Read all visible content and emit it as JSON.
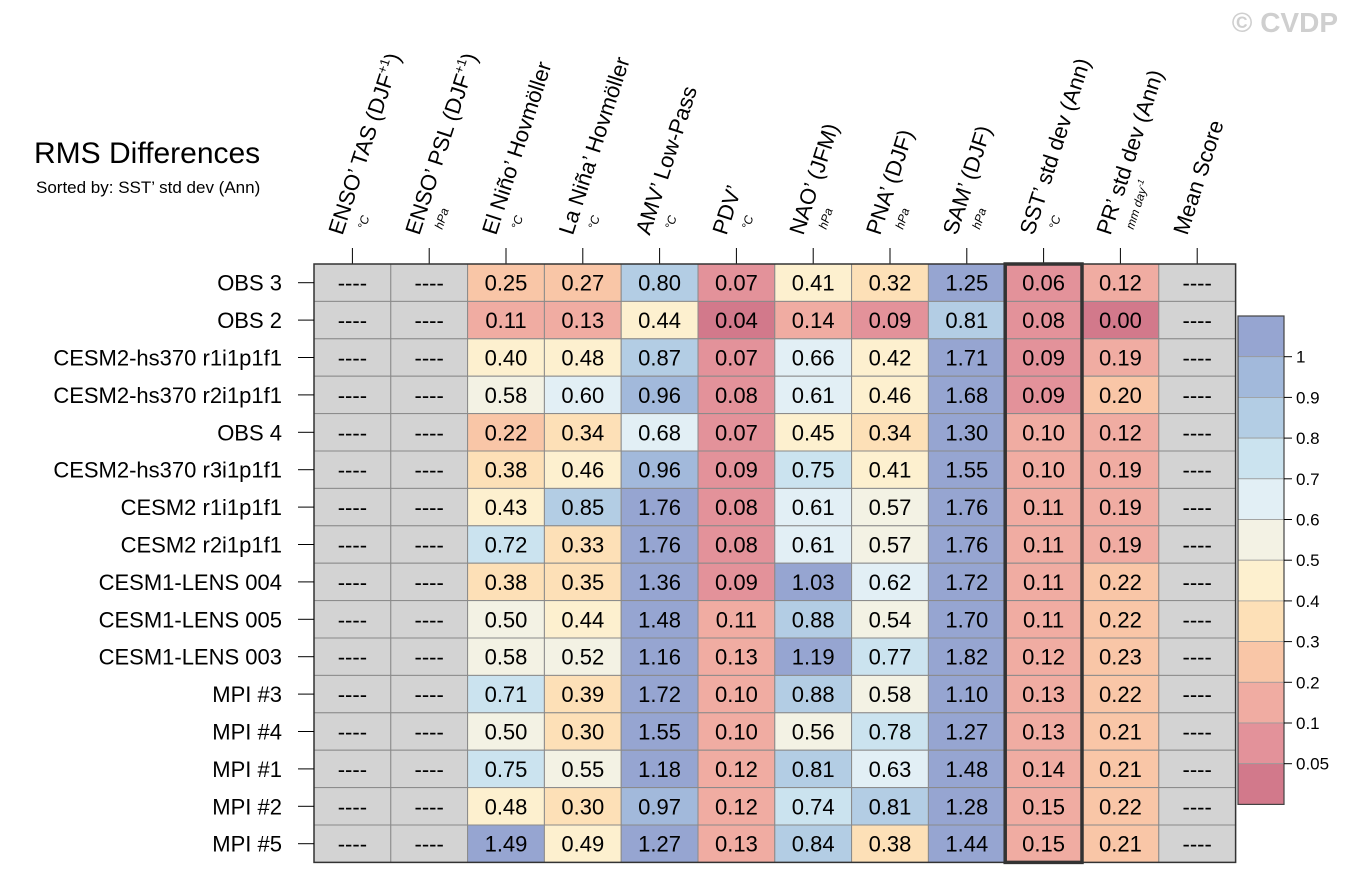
{
  "chart_data": {
    "type": "heatmap",
    "title": "RMS Differences",
    "subtitle": "Sorted by: SST’ std dev (Ann)",
    "watermark": "© CVDP",
    "missing_text": "----",
    "columns": [
      {
        "label": "ENSO’ TAS (DJF",
        "sup": "+1",
        "close": ")",
        "unit": "°C"
      },
      {
        "label": "ENSO’ PSL (DJF",
        "sup": "+1",
        "close": ")",
        "unit": "hPa"
      },
      {
        "label": "El Niño’ Hovmöller",
        "unit": "°C"
      },
      {
        "label": "La Niña’ Hovmöller",
        "unit": "°C"
      },
      {
        "label": "AMV’ Low-Pass",
        "unit": "°C"
      },
      {
        "label": "PDV’",
        "unit": "°C"
      },
      {
        "label": "NAO’ (JFM)",
        "unit": "hPa"
      },
      {
        "label": "PNA’ (DJF)",
        "unit": "hPa"
      },
      {
        "label": "SAM’ (DJF)",
        "unit": "hPa"
      },
      {
        "label": "SST’ std dev (Ann)",
        "unit": "°C"
      },
      {
        "label": "PR’ std dev (Ann)",
        "unit": "mm day",
        "unit_sup": "-1"
      },
      {
        "label": "Mean Score",
        "unit": ""
      }
    ],
    "highlight_column": 9,
    "rows": [
      {
        "name": "OBS 3",
        "values": [
          null,
          null,
          0.25,
          0.27,
          0.8,
          0.07,
          0.41,
          0.32,
          1.25,
          0.06,
          0.12,
          null
        ]
      },
      {
        "name": "OBS 2",
        "values": [
          null,
          null,
          0.11,
          0.13,
          0.44,
          0.04,
          0.14,
          0.09,
          0.81,
          0.08,
          0.0,
          null
        ]
      },
      {
        "name": "CESM2-hs370 r1i1p1f1",
        "values": [
          null,
          null,
          0.4,
          0.48,
          0.87,
          0.07,
          0.66,
          0.42,
          1.71,
          0.09,
          0.19,
          null
        ]
      },
      {
        "name": "CESM2-hs370 r2i1p1f1",
        "values": [
          null,
          null,
          0.58,
          0.6,
          0.96,
          0.08,
          0.61,
          0.46,
          1.68,
          0.09,
          0.2,
          null
        ]
      },
      {
        "name": "OBS 4",
        "values": [
          null,
          null,
          0.22,
          0.34,
          0.68,
          0.07,
          0.45,
          0.34,
          1.3,
          0.1,
          0.12,
          null
        ]
      },
      {
        "name": "CESM2-hs370 r3i1p1f1",
        "values": [
          null,
          null,
          0.38,
          0.46,
          0.96,
          0.09,
          0.75,
          0.41,
          1.55,
          0.1,
          0.19,
          null
        ]
      },
      {
        "name": "CESM2 r1i1p1f1",
        "values": [
          null,
          null,
          0.43,
          0.85,
          1.76,
          0.08,
          0.61,
          0.57,
          1.76,
          0.11,
          0.19,
          null
        ]
      },
      {
        "name": "CESM2 r2i1p1f1",
        "values": [
          null,
          null,
          0.72,
          0.33,
          1.76,
          0.08,
          0.61,
          0.57,
          1.76,
          0.11,
          0.19,
          null
        ]
      },
      {
        "name": "CESM1-LENS 004",
        "values": [
          null,
          null,
          0.38,
          0.35,
          1.36,
          0.09,
          1.03,
          0.62,
          1.72,
          0.11,
          0.22,
          null
        ]
      },
      {
        "name": "CESM1-LENS 005",
        "values": [
          null,
          null,
          0.5,
          0.44,
          1.48,
          0.11,
          0.88,
          0.54,
          1.7,
          0.11,
          0.22,
          null
        ]
      },
      {
        "name": "CESM1-LENS 003",
        "values": [
          null,
          null,
          0.58,
          0.52,
          1.16,
          0.13,
          1.19,
          0.77,
          1.82,
          0.12,
          0.23,
          null
        ]
      },
      {
        "name": "MPI #3",
        "values": [
          null,
          null,
          0.71,
          0.39,
          1.72,
          0.1,
          0.88,
          0.58,
          1.1,
          0.13,
          0.22,
          null
        ]
      },
      {
        "name": "MPI #4",
        "values": [
          null,
          null,
          0.5,
          0.3,
          1.55,
          0.1,
          0.56,
          0.78,
          1.27,
          0.13,
          0.21,
          null
        ]
      },
      {
        "name": "MPI #1",
        "values": [
          null,
          null,
          0.75,
          0.55,
          1.18,
          0.12,
          0.81,
          0.63,
          1.48,
          0.14,
          0.21,
          null
        ]
      },
      {
        "name": "MPI #2",
        "values": [
          null,
          null,
          0.48,
          0.3,
          0.97,
          0.12,
          0.74,
          0.81,
          1.28,
          0.15,
          0.22,
          null
        ]
      },
      {
        "name": "MPI #5",
        "values": [
          null,
          null,
          1.49,
          0.49,
          1.27,
          0.13,
          0.84,
          0.38,
          1.44,
          0.15,
          0.21,
          null
        ]
      }
    ],
    "colorbar": {
      "levels": [
        0.05,
        0.1,
        0.2,
        0.3,
        0.4,
        0.5,
        0.6,
        0.7,
        0.8,
        0.9,
        1
      ],
      "colors": [
        "#d2798b",
        "#e3929a",
        "#f0aca2",
        "#f9c6a7",
        "#fde0b7",
        "#fdf0cf",
        "#f3f2e4",
        "#e2eff5",
        "#cbe3ef",
        "#b3cde4",
        "#a2b9db",
        "#96a5d1"
      ],
      "missing_color": "#d3d3d3"
    }
  }
}
